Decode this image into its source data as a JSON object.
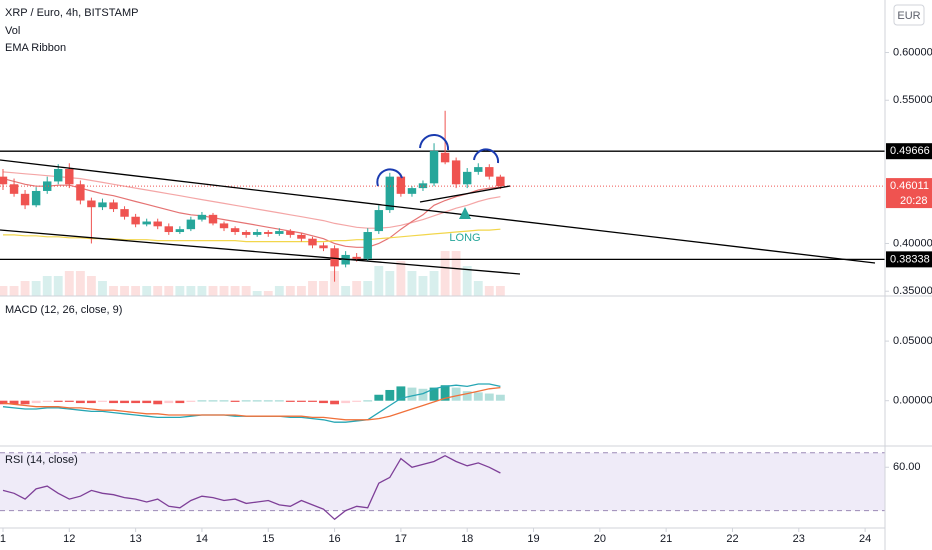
{
  "chart_data": [
    {
      "type": "candlestick",
      "title": "XRP / Euro, 4h, BITSTAMP",
      "indicators": [
        "Vol",
        "EMA Ribbon"
      ],
      "currency": "EUR",
      "x": [
        11,
        11.167,
        11.333,
        11.5,
        11.667,
        11.833,
        12,
        12.167,
        12.333,
        12.5,
        12.667,
        12.833,
        13,
        13.167,
        13.333,
        13.5,
        13.667,
        13.833,
        14,
        14.167,
        14.333,
        14.5,
        14.667,
        14.833,
        15,
        15.167,
        15.333,
        15.5,
        15.667,
        15.833,
        16,
        16.167,
        16.333,
        16.5,
        16.667,
        16.833,
        17,
        17.167,
        17.333,
        17.5,
        17.667,
        17.833,
        18,
        18.167,
        18.333,
        18.5
      ],
      "open": [
        0.47,
        0.462,
        0.452,
        0.44,
        0.455,
        0.465,
        0.478,
        0.462,
        0.445,
        0.438,
        0.443,
        0.436,
        0.428,
        0.42,
        0.423,
        0.418,
        0.412,
        0.415,
        0.425,
        0.43,
        0.421,
        0.416,
        0.412,
        0.409,
        0.412,
        0.41,
        0.413,
        0.409,
        0.405,
        0.398,
        0.395,
        0.378,
        0.386,
        0.384,
        0.413,
        0.435,
        0.47,
        0.452,
        0.458,
        0.463,
        0.495,
        0.487,
        0.462,
        0.475,
        0.48,
        0.47
      ],
      "high": [
        0.478,
        0.468,
        0.456,
        0.459,
        0.47,
        0.483,
        0.484,
        0.466,
        0.448,
        0.447,
        0.446,
        0.439,
        0.431,
        0.426,
        0.426,
        0.421,
        0.418,
        0.428,
        0.433,
        0.432,
        0.423,
        0.418,
        0.414,
        0.415,
        0.414,
        0.416,
        0.415,
        0.411,
        0.407,
        0.401,
        0.398,
        0.392,
        0.39,
        0.416,
        0.44,
        0.474,
        0.473,
        0.46,
        0.466,
        0.505,
        0.539,
        0.49,
        0.479,
        0.484,
        0.483,
        0.472
      ],
      "low": [
        0.456,
        0.449,
        0.436,
        0.438,
        0.452,
        0.462,
        0.458,
        0.441,
        0.4,
        0.435,
        0.433,
        0.425,
        0.417,
        0.418,
        0.415,
        0.409,
        0.41,
        0.413,
        0.423,
        0.419,
        0.413,
        0.409,
        0.406,
        0.407,
        0.407,
        0.408,
        0.406,
        0.402,
        0.395,
        0.392,
        0.36,
        0.375,
        0.381,
        0.382,
        0.41,
        0.432,
        0.449,
        0.449,
        0.455,
        0.46,
        0.483,
        0.458,
        0.458,
        0.472,
        0.467,
        0.457
      ],
      "close": [
        0.462,
        0.452,
        0.44,
        0.455,
        0.465,
        0.478,
        0.462,
        0.445,
        0.438,
        0.443,
        0.436,
        0.428,
        0.42,
        0.423,
        0.418,
        0.412,
        0.415,
        0.425,
        0.43,
        0.421,
        0.416,
        0.412,
        0.409,
        0.412,
        0.41,
        0.413,
        0.409,
        0.405,
        0.398,
        0.395,
        0.376,
        0.388,
        0.384,
        0.412,
        0.435,
        0.47,
        0.452,
        0.458,
        0.463,
        0.497,
        0.485,
        0.462,
        0.475,
        0.48,
        0.47,
        0.46011
      ],
      "volume": [
        2,
        2,
        3,
        3,
        4,
        4,
        5,
        5,
        4,
        3,
        2,
        2,
        2,
        2,
        2,
        2,
        2,
        2,
        2,
        2,
        2,
        2,
        2,
        1,
        1,
        2,
        2,
        2,
        3,
        3,
        5,
        2,
        3,
        3,
        6,
        5,
        7,
        5,
        4,
        5,
        9,
        9,
        6,
        3,
        2,
        2
      ],
      "series": [
        {
          "color": "#f4a6a6",
          "values": [
            0.475,
            0.474,
            0.473,
            0.472,
            0.471,
            0.47,
            0.469,
            0.468,
            0.466,
            0.464,
            0.462,
            0.46,
            0.458,
            0.456,
            0.454,
            0.452,
            0.45,
            0.448,
            0.446,
            0.444,
            0.442,
            0.44,
            0.438,
            0.436,
            0.434,
            0.432,
            0.43,
            0.428,
            0.426,
            0.424,
            0.421,
            0.419,
            0.417,
            0.416,
            0.416,
            0.417,
            0.419,
            0.422,
            0.425,
            0.429,
            0.433,
            0.437,
            0.44,
            0.444,
            0.447,
            0.449
          ]
        },
        {
          "color": "#e57373",
          "values": [
            0.468,
            0.465,
            0.462,
            0.46,
            0.46,
            0.461,
            0.461,
            0.458,
            0.455,
            0.452,
            0.45,
            0.447,
            0.444,
            0.441,
            0.438,
            0.435,
            0.432,
            0.43,
            0.429,
            0.427,
            0.425,
            0.423,
            0.421,
            0.419,
            0.417,
            0.415,
            0.413,
            0.411,
            0.408,
            0.405,
            0.4,
            0.397,
            0.396,
            0.396,
            0.4,
            0.406,
            0.415,
            0.423,
            0.43,
            0.44,
            0.445,
            0.449,
            0.452,
            0.456,
            0.458,
            0.459
          ]
        },
        {
          "color": "#f2d64b",
          "values": [
            0.409,
            0.409,
            0.408,
            0.408,
            0.407,
            0.407,
            0.406,
            0.406,
            0.405,
            0.405,
            0.405,
            0.404,
            0.404,
            0.404,
            0.403,
            0.403,
            0.403,
            0.403,
            0.403,
            0.403,
            0.403,
            0.403,
            0.402,
            0.402,
            0.402,
            0.402,
            0.402,
            0.402,
            0.402,
            0.402,
            0.403,
            0.403,
            0.404,
            0.404,
            0.405,
            0.406,
            0.407,
            0.408,
            0.409,
            0.41,
            0.411,
            0.412,
            0.413,
            0.414,
            0.414,
            0.415
          ]
        }
      ],
      "up_color": "#26a69a",
      "down_color": "#ef5350",
      "xlim": [
        10.955,
        24.3
      ],
      "xticks": [
        {
          "value": 11,
          "label": "1"
        },
        12,
        13,
        14,
        15,
        16,
        17,
        18,
        19,
        20,
        21,
        22,
        23,
        24
      ],
      "ylim": [
        0.345,
        0.655
      ],
      "yticks": [
        {
          "value": 0.6,
          "label": "0.60000"
        },
        {
          "value": 0.55,
          "label": "0.55000"
        },
        {
          "value": 0.4,
          "label": "0.40000"
        },
        {
          "value": 0.35,
          "label": "0.35000"
        }
      ],
      "hlines": [
        0.49666,
        0.38338
      ],
      "last_price": 0.46011,
      "countdown": "20:28",
      "annotation": "LONG"
    },
    {
      "type": "macd",
      "title": "MACD (12, 26, close, 9)",
      "histogram": [
        -0.003,
        -0.003,
        -0.003,
        -0.002,
        -0.001,
        -0.001,
        -0.001,
        -0.002,
        -0.002,
        -0.001,
        -0.002,
        -0.002,
        -0.002,
        -0.002,
        -0.003,
        -0.002,
        -0.002,
        -0.001,
        0,
        0,
        0,
        -0.001,
        0,
        0,
        0,
        0,
        -0.001,
        -0.001,
        -0.001,
        -0.002,
        -0.003,
        -0.002,
        -0.001,
        0,
        0.005,
        0.009,
        0.012,
        0.011,
        0.01,
        0.011,
        0.013,
        0.011,
        0.008,
        0.007,
        0.006,
        0.005
      ],
      "series": [
        {
          "color": "#26a6b4",
          "values": [
            -0.005,
            -0.006,
            -0.007,
            -0.007,
            -0.006,
            -0.006,
            -0.007,
            -0.008,
            -0.009,
            -0.009,
            -0.01,
            -0.011,
            -0.012,
            -0.013,
            -0.014,
            -0.014,
            -0.014,
            -0.013,
            -0.012,
            -0.012,
            -0.012,
            -0.013,
            -0.013,
            -0.013,
            -0.013,
            -0.013,
            -0.014,
            -0.014,
            -0.015,
            -0.016,
            -0.018,
            -0.018,
            -0.017,
            -0.016,
            -0.01,
            -0.004,
            0.002,
            0.004,
            0.006,
            0.01,
            0.012,
            0.013,
            0.012,
            0.014,
            0.014,
            0.012
          ]
        },
        {
          "color": "#f0703a",
          "values": [
            -0.002,
            -0.003,
            -0.004,
            -0.005,
            -0.005,
            -0.005,
            -0.006,
            -0.006,
            -0.007,
            -0.008,
            -0.008,
            -0.009,
            -0.01,
            -0.011,
            -0.011,
            -0.012,
            -0.012,
            -0.012,
            -0.012,
            -0.012,
            -0.012,
            -0.012,
            -0.013,
            -0.013,
            -0.013,
            -0.013,
            -0.013,
            -0.013,
            -0.014,
            -0.014,
            -0.015,
            -0.016,
            -0.016,
            -0.016,
            -0.015,
            -0.013,
            -0.01,
            -0.007,
            -0.004,
            -0.001,
            0.002,
            0.004,
            0.006,
            0.008,
            0.01,
            0.011
          ]
        }
      ],
      "ylim": [
        -0.038,
        0.087
      ],
      "yticks": [
        {
          "value": 0.05,
          "label": "0.05000"
        },
        {
          "value": 0,
          "label": "0.00000"
        }
      ]
    },
    {
      "type": "rsi",
      "title": "RSI (14, close)",
      "color": "#7e3f98",
      "values": [
        44,
        42,
        38,
        45,
        47,
        42,
        38,
        40,
        44,
        42,
        41,
        39,
        38,
        36,
        38,
        33,
        32,
        37,
        40,
        39,
        37,
        38,
        35,
        36,
        37,
        34,
        33,
        37,
        34,
        31,
        24,
        30,
        33,
        32,
        49,
        53,
        66,
        60,
        62,
        64,
        68,
        64,
        61,
        63,
        60,
        56
      ],
      "bands": [
        30,
        70
      ],
      "ylim": [
        18,
        74
      ],
      "yticks": [
        {
          "value": 60,
          "label": "60.00"
        }
      ]
    }
  ]
}
